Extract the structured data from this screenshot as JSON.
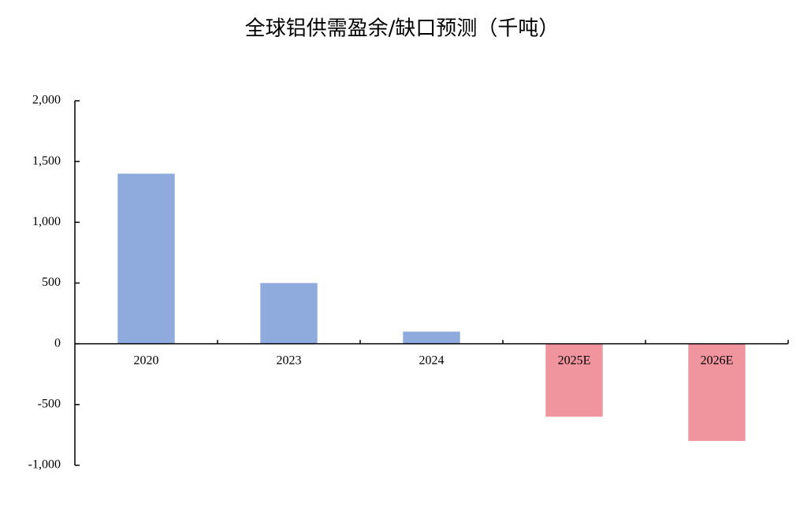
{
  "chart_data": {
    "type": "bar",
    "title": "全球铝供需盈余/缺口预测（千吨）",
    "categories": [
      "2020",
      "2023",
      "2024",
      "2025E",
      "2026E"
    ],
    "values": [
      1400,
      500,
      100,
      -600,
      -800
    ],
    "colors": [
      "#8faadc",
      "#8faadc",
      "#8faadc",
      "#f0949e",
      "#f0949e"
    ],
    "ylim": [
      -1000,
      2000
    ],
    "yticks": [
      {
        "value": -1000,
        "label": "-1,000"
      },
      -500,
      0,
      500,
      {
        "value": 1000,
        "label": "1,000"
      },
      {
        "value": 1500,
        "label": "1,500"
      },
      {
        "value": 2000,
        "label": "2,000"
      }
    ],
    "grid": false
  }
}
